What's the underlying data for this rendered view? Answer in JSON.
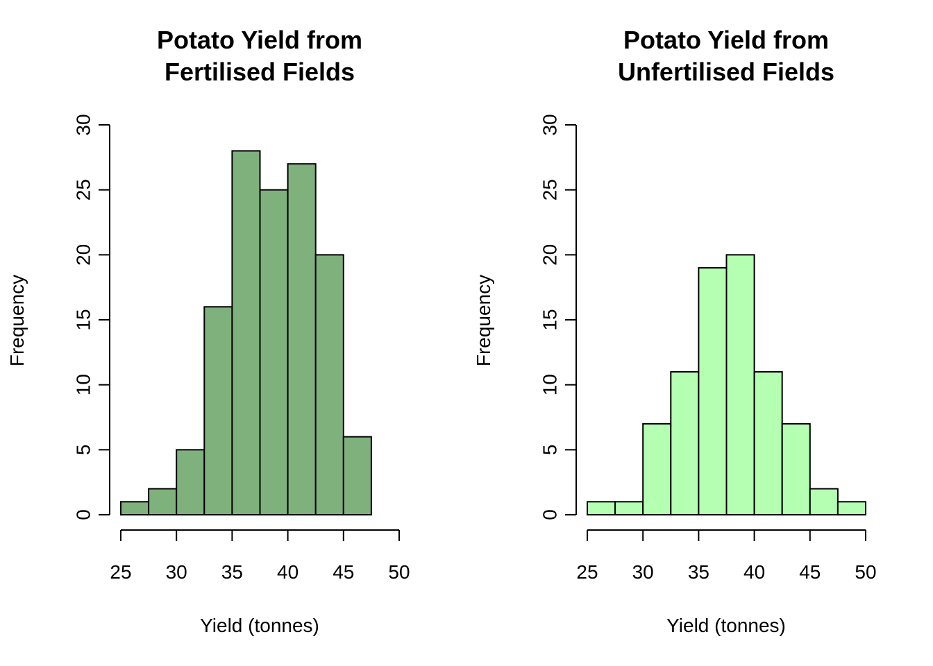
{
  "chart_data": [
    {
      "type": "bar",
      "title_lines": [
        "Potato Yield from",
        "Fertilised Fields"
      ],
      "xlabel": "Yield (tonnes)",
      "ylabel": "Frequency",
      "bin_edges": [
        25,
        27.5,
        30,
        32.5,
        35,
        37.5,
        40,
        42.5,
        45,
        47.5
      ],
      "values": [
        1,
        2,
        5,
        16,
        28,
        25,
        27,
        20,
        6
      ],
      "xlim": [
        25,
        50
      ],
      "ylim": [
        0,
        30
      ],
      "xticks": [
        25,
        30,
        35,
        40,
        45,
        50
      ],
      "yticks": [
        0,
        5,
        10,
        15,
        20,
        25,
        30
      ],
      "grid": false,
      "fill_color": "#7fb17d"
    },
    {
      "type": "bar",
      "title_lines": [
        "Potato Yield from",
        "Unfertilised Fields"
      ],
      "xlabel": "Yield (tonnes)",
      "ylabel": "Frequency",
      "bin_edges": [
        25,
        27.5,
        30,
        32.5,
        35,
        37.5,
        40,
        42.5,
        45,
        47.5,
        50
      ],
      "values": [
        1,
        1,
        7,
        11,
        19,
        20,
        11,
        7,
        2,
        1
      ],
      "xlim": [
        25,
        50
      ],
      "ylim": [
        0,
        30
      ],
      "xticks": [
        25,
        30,
        35,
        40,
        45,
        50
      ],
      "yticks": [
        0,
        5,
        10,
        15,
        20,
        25,
        30
      ],
      "grid": false,
      "fill_color": "#b5ffb3"
    }
  ]
}
